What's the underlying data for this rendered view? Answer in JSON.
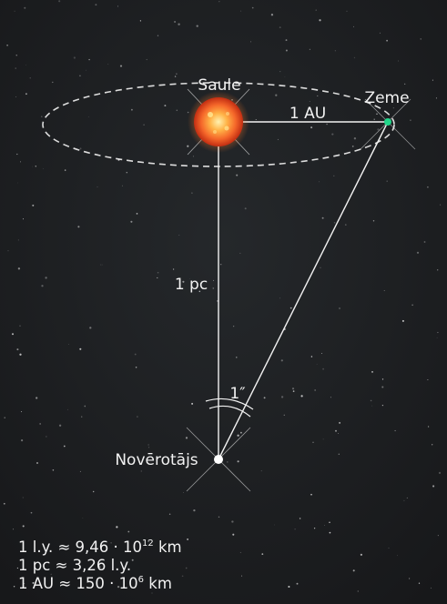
{
  "labels": {
    "sun": "Saule",
    "earth": "Zeme",
    "au": "1 AU",
    "pc": "1 pc",
    "angle": "1″",
    "observer": "Novērotājs"
  },
  "legend": {
    "ly_prefix": "1 l.y. ≈  9,46 · 10",
    "ly_exp": "12",
    "ly_suffix": " km",
    "pc_line": "1 pc ≈ 3,26 l.y.",
    "au_prefix": "1 AU ≈ 150 · 10",
    "au_exp": "6",
    "au_suffix": " km"
  },
  "colors": {
    "background": "#1c1e20",
    "sun": "#f5672a",
    "earth": "#22d58a",
    "lines": "#f2f2f2"
  }
}
